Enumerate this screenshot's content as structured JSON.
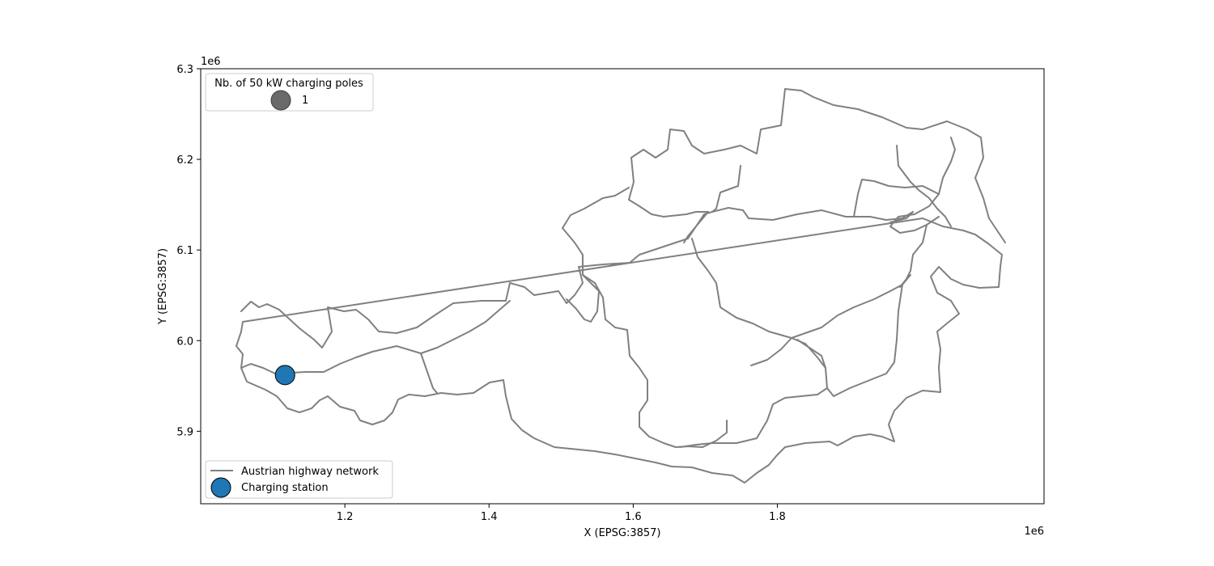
{
  "chart_data": {
    "type": "map",
    "xlabel": "X (EPSG:3857)",
    "ylabel": "Y (EPSG:3857)",
    "x_offset_label": "1e6",
    "y_offset_label": "1e6",
    "xlim": [
      1.0,
      2.17
    ],
    "ylim": [
      5.82,
      6.3
    ],
    "x_ticks": [
      {
        "value": 1.2,
        "label": "1.2"
      },
      {
        "value": 1.4,
        "label": "1.4"
      },
      {
        "value": 1.6,
        "label": "1.6"
      },
      {
        "value": 1.8,
        "label": "1.8"
      }
    ],
    "y_ticks": [
      {
        "value": 5.9,
        "label": "5.9"
      },
      {
        "value": 6.0,
        "label": "6.0"
      },
      {
        "value": 6.1,
        "label": "6.1"
      },
      {
        "value": 6.2,
        "label": "6.2"
      },
      {
        "value": 6.3,
        "label": "6.3"
      }
    ],
    "series": [
      {
        "name": "Austrian highway network",
        "kind": "line",
        "color": "#808080"
      },
      {
        "name": "Charging station",
        "kind": "point",
        "color": "#1f77b4",
        "points": [
          {
            "x": 1.117,
            "y": 5.962,
            "poles": 1
          }
        ]
      }
    ],
    "size_legend": {
      "title": "Nb. of 50 kW charging poles",
      "entries": [
        {
          "value": 1,
          "label": "1"
        }
      ],
      "color": "#696969"
    },
    "legend": [
      {
        "label": "Austrian highway network",
        "marker": "line",
        "color": "#808080"
      },
      {
        "label": "Charging station",
        "marker": "circle",
        "color": "#1f77b4"
      }
    ],
    "grid": false
  }
}
